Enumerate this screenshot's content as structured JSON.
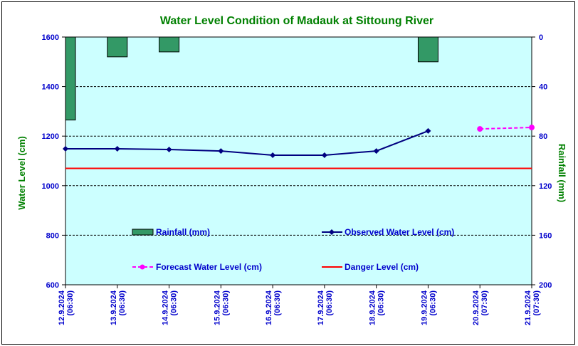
{
  "chart_data": {
    "type": "line",
    "title": "Water Level Condition of Madauk at Sittoung River",
    "ylabel": "Water Level (cm)",
    "y2label": "Rainfall (mm)",
    "ylim": [
      600,
      1600
    ],
    "y2lim": [
      0,
      200
    ],
    "y2_inverted": true,
    "yticks": [
      "600",
      "800",
      "1000",
      "1200",
      "1400",
      "1600"
    ],
    "y2ticks": [
      "0",
      "40",
      "80",
      "120",
      "160",
      "200"
    ],
    "grid": true,
    "categories": [
      [
        "12.9.2024",
        "(06:30)"
      ],
      [
        "13.9.2024",
        "(06:30)"
      ],
      [
        "14.9.2024",
        "(06:30)"
      ],
      [
        "15.9.2024",
        "(06:30)"
      ],
      [
        "16.9.2024",
        "(06:30)"
      ],
      [
        "17.9.2024",
        "(06:30)"
      ],
      [
        "18.9.2024",
        "(06:30)"
      ],
      [
        "19.9.2024",
        "(06:30)"
      ],
      [
        "20.9.2024",
        "(07:30)"
      ],
      [
        "21.9.2024",
        "(07:30)"
      ]
    ],
    "series": [
      {
        "name": "Rainfall (mm)",
        "type": "bar",
        "axis": "right",
        "color": "#339966",
        "values": [
          67,
          16,
          12,
          0,
          0,
          0,
          0,
          20,
          0,
          0
        ]
      },
      {
        "name": "Observed Water Level (cm)",
        "type": "line",
        "color": "#000080",
        "values": [
          1149,
          1149,
          1146,
          1140,
          1123,
          1123,
          1140,
          1221,
          null,
          null
        ]
      },
      {
        "name": "Forecast Water Level (cm)",
        "type": "line",
        "dashed": true,
        "color": "#ff00ff",
        "values": [
          null,
          null,
          null,
          null,
          null,
          null,
          null,
          null,
          1229,
          1235
        ]
      },
      {
        "name": "Danger Level (cm)",
        "type": "line",
        "color": "#ff0000",
        "values": [
          1070,
          1070,
          1070,
          1070,
          1070,
          1070,
          1070,
          1070,
          1070,
          1070
        ]
      }
    ]
  }
}
